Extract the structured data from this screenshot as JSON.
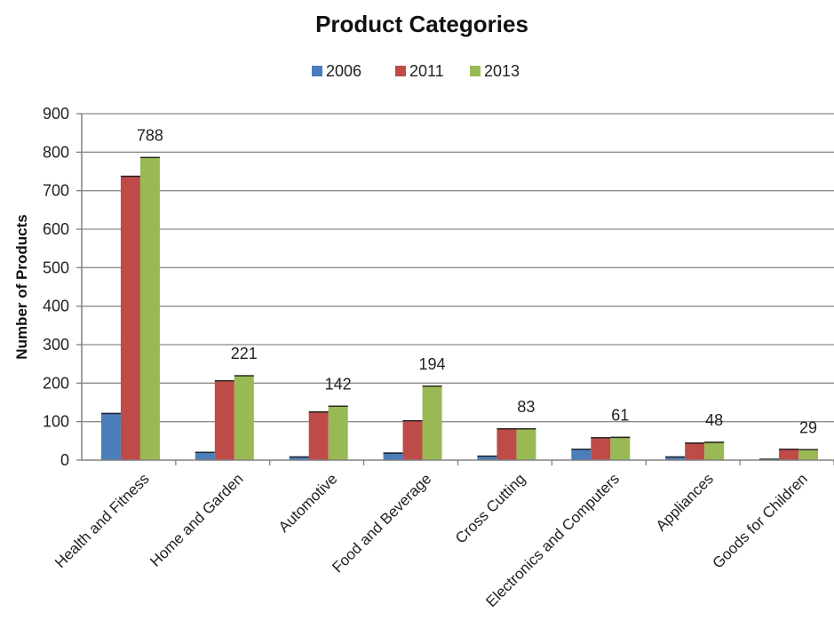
{
  "chart_data": {
    "type": "bar",
    "title": "Product Categories",
    "ylabel": "Number of Products",
    "xlabel": "",
    "ylim": [
      0,
      900
    ],
    "yticks": [
      "0",
      "100",
      "200",
      "300",
      "400",
      "500",
      "600",
      "700",
      "800",
      "900"
    ],
    "grid": true,
    "legend_position": "top",
    "categories": [
      "Health and Fitness",
      "Home and Garden",
      "Automotive",
      "Food and Beverage",
      "Cross Cutting",
      "Electronics and Computers",
      "Appliances",
      "Goods for Children"
    ],
    "series": [
      {
        "name": "2006",
        "color": "#4a7ebb",
        "values": [
          123,
          22,
          10,
          20,
          12,
          30,
          10,
          4
        ]
      },
      {
        "name": "2011",
        "color": "#be4b48",
        "values": [
          739,
          208,
          127,
          104,
          83,
          60,
          46,
          30
        ]
      },
      {
        "name": "2013",
        "color": "#98b954",
        "values": [
          788,
          221,
          142,
          194,
          83,
          61,
          48,
          29
        ]
      }
    ],
    "data_labels": {
      "series": "2013",
      "values": [
        "788",
        "221",
        "142",
        "194",
        "83",
        "61",
        "48",
        "29"
      ]
    }
  }
}
